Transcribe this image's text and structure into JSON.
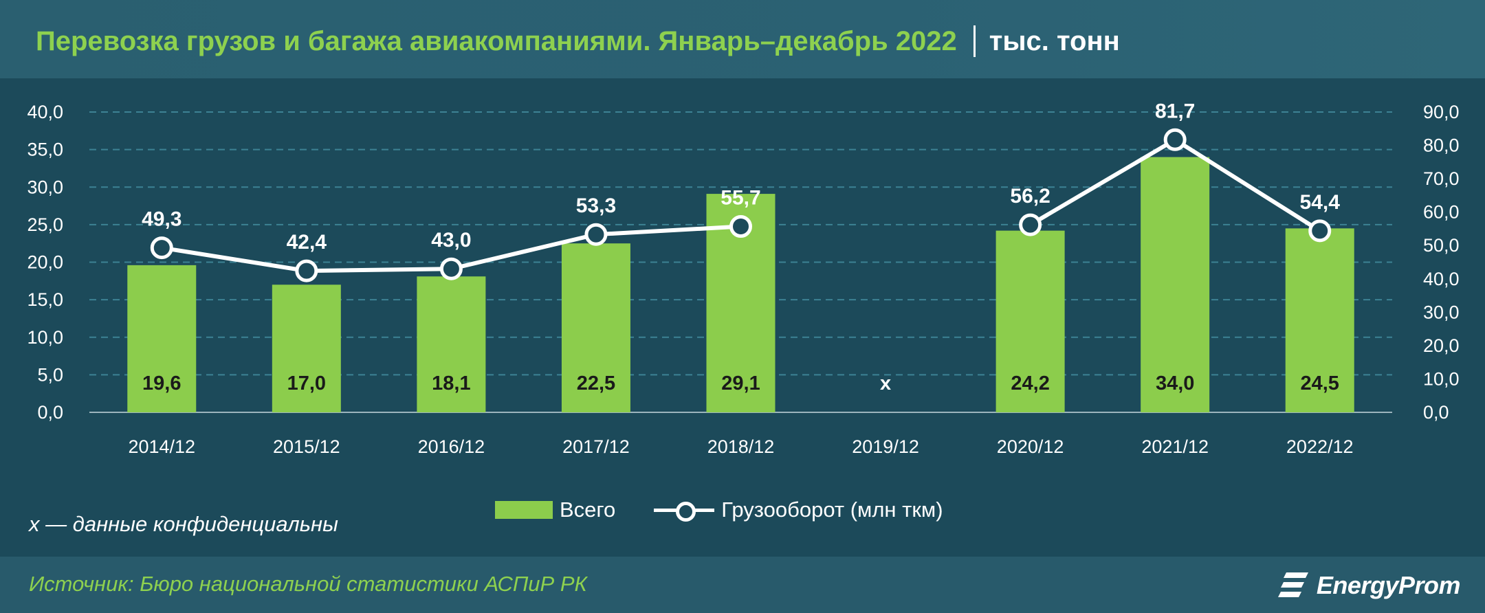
{
  "header": {
    "title": "Перевозка грузов и багажа авиакомпаниями. Январь–декабрь 2022",
    "unit": "тыс. тонн"
  },
  "chart_data": {
    "type": "bar",
    "categories": [
      "2014/12",
      "2015/12",
      "2016/12",
      "2017/12",
      "2018/12",
      "2019/12",
      "2020/12",
      "2021/12",
      "2022/12"
    ],
    "series": [
      {
        "name": "Всего",
        "type": "bar",
        "axis": "left",
        "values": [
          19.6,
          17.0,
          18.1,
          22.5,
          29.1,
          null,
          24.2,
          34.0,
          24.5
        ],
        "labels": [
          "19,6",
          "17,0",
          "18,1",
          "22,5",
          "29,1",
          "x",
          "24,2",
          "34,0",
          "24,5"
        ],
        "color": "#8ccd4c"
      },
      {
        "name": "Грузооборот (млн ткм)",
        "type": "line",
        "axis": "right",
        "values": [
          49.3,
          42.4,
          43.0,
          53.3,
          55.7,
          null,
          56.2,
          81.7,
          54.4
        ],
        "labels": [
          "49,3",
          "42,4",
          "43,0",
          "53,3",
          "55,7",
          "",
          "56,2",
          "81,7",
          "54,4"
        ],
        "color": "#ffffff"
      }
    ],
    "y_left": {
      "min": 0,
      "max": 40,
      "ticks": [
        "0,0",
        "5,0",
        "10,0",
        "15,0",
        "20,0",
        "25,0",
        "30,0",
        "35,0",
        "40,0"
      ]
    },
    "y_right": {
      "min": 0,
      "max": 90,
      "ticks": [
        "0,0",
        "10,0",
        "20,0",
        "30,0",
        "40,0",
        "50,0",
        "60,0",
        "70,0",
        "80,0",
        "90,0"
      ]
    },
    "grid": true,
    "legend": "bottom"
  },
  "legend": {
    "bar_label": "Всего",
    "line_label": "Грузооборот (млн ткм)"
  },
  "note": "x — данные конфиденциальны",
  "footer": {
    "source": "Источник: Бюро национальной статистики АСПиР РК",
    "logo": "EnergyProm"
  },
  "colors": {
    "accent_green": "#8ed14f",
    "bar": "#8ccd4c",
    "background": "#1c4a5a"
  }
}
